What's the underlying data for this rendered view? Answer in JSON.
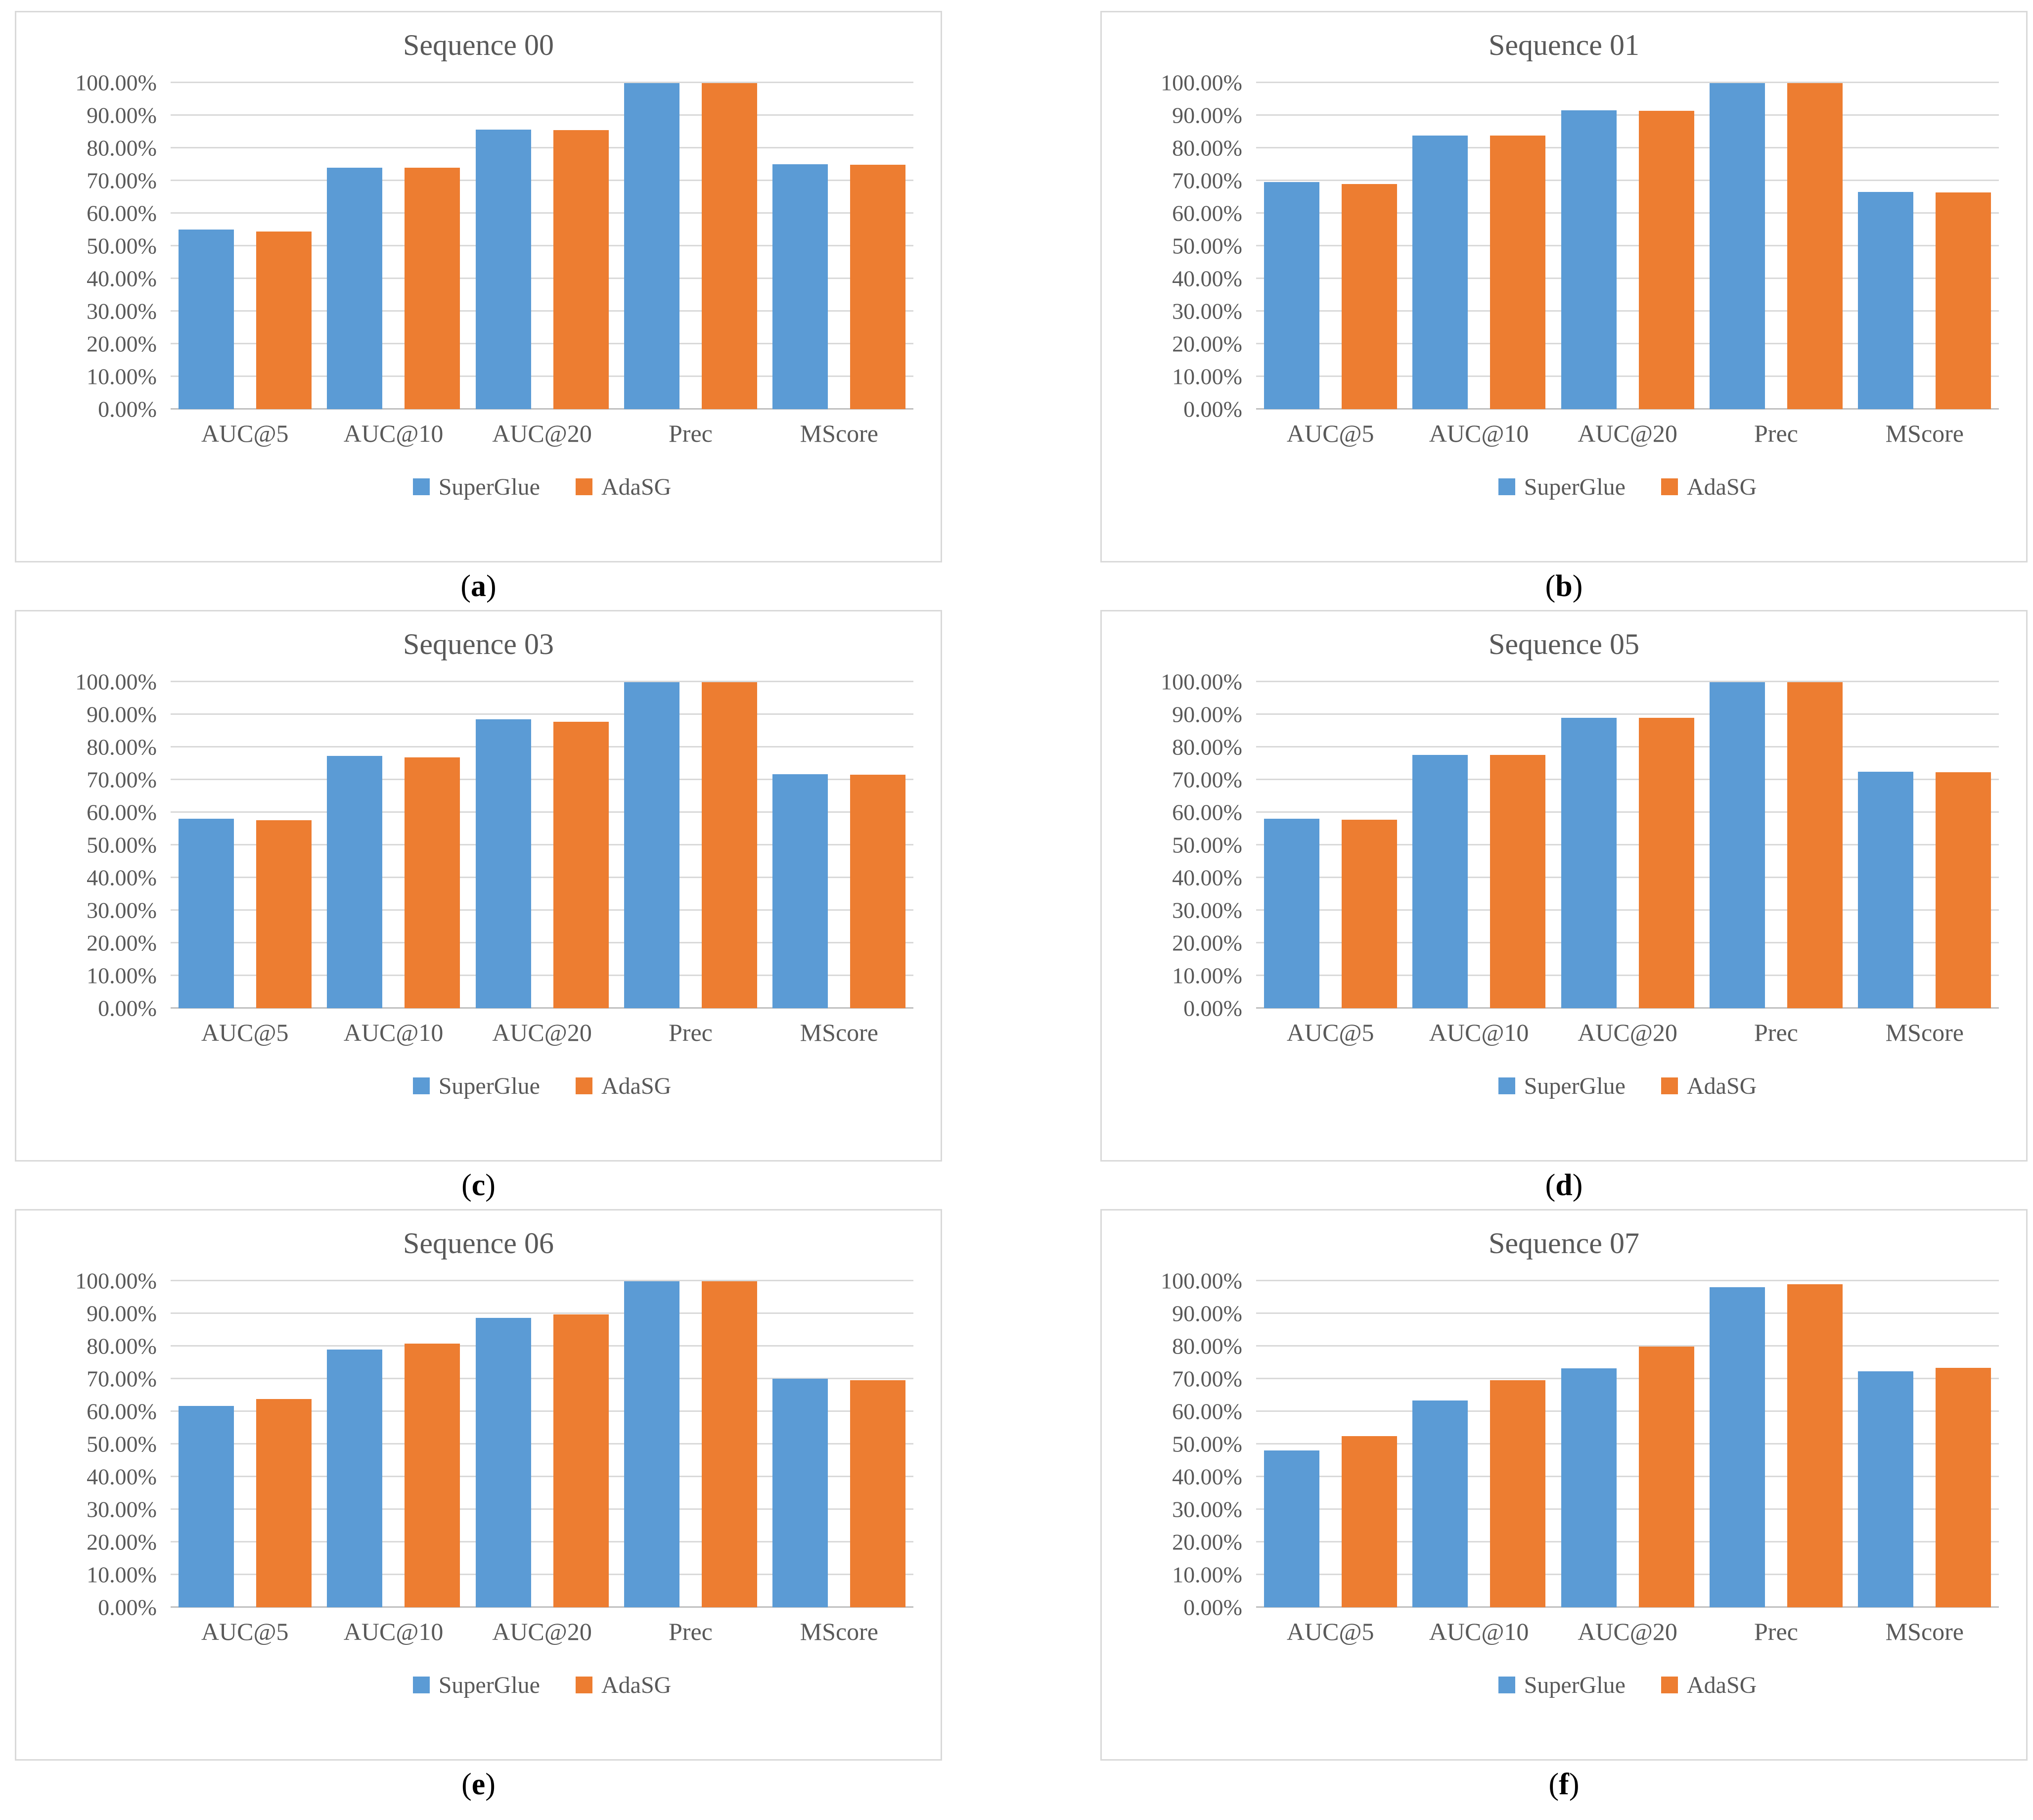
{
  "caption": {
    "open": "(",
    "close": ")"
  },
  "colors": {
    "series_blue": "#5B9BD5",
    "series_orange": "#ED7D31",
    "text_gray": "#595959",
    "gridline": "#D9D9D9",
    "axis_line": "#BFBFBF",
    "panel_border": "#D9D9D9",
    "caption_black": "#000000"
  },
  "legend": {
    "position": "bottom",
    "items": [
      {
        "label": "SuperGlue",
        "color": "#5B9BD5"
      },
      {
        "label": "AdaSG",
        "color": "#ED7D31"
      }
    ]
  },
  "y_axis": {
    "min": 0,
    "max": 100,
    "step": 10,
    "format": "percent",
    "grid": true,
    "tick_labels": [
      "100.00%",
      "90.00%",
      "80.00%",
      "70.00%",
      "60.00%",
      "50.00%",
      "40.00%",
      "30.00%",
      "20.00%",
      "10.00%",
      "0.00%"
    ]
  },
  "chart_data": [
    {
      "type": "bar",
      "title": "Sequence 00",
      "caption_letter": "a",
      "categories": [
        "AUC@5",
        "AUC@10",
        "AUC@20",
        "Prec",
        "MScore"
      ],
      "ylim": [
        0,
        100
      ],
      "grid": true,
      "legend_position": "bottom",
      "series": [
        {
          "name": "SuperGlue",
          "values": [
            55.0,
            74.0,
            85.6,
            99.8,
            75.0
          ]
        },
        {
          "name": "AdaSG",
          "values": [
            54.4,
            74.0,
            85.5,
            99.8,
            74.9
          ]
        }
      ]
    },
    {
      "type": "bar",
      "title": "Sequence 01",
      "caption_letter": "b",
      "categories": [
        "AUC@5",
        "AUC@10",
        "AUC@20",
        "Prec",
        "MScore"
      ],
      "ylim": [
        0,
        100
      ],
      "grid": true,
      "legend_position": "bottom",
      "series": [
        {
          "name": "SuperGlue",
          "values": [
            69.5,
            83.8,
            91.5,
            99.9,
            66.5
          ]
        },
        {
          "name": "AdaSG",
          "values": [
            69.0,
            83.8,
            91.4,
            99.9,
            66.4
          ]
        }
      ]
    },
    {
      "type": "bar",
      "title": "Sequence 03",
      "caption_letter": "c",
      "categories": [
        "AUC@5",
        "AUC@10",
        "AUC@20",
        "Prec",
        "MScore"
      ],
      "ylim": [
        0,
        100
      ],
      "grid": true,
      "legend_position": "bottom",
      "series": [
        {
          "name": "SuperGlue",
          "values": [
            58.0,
            77.2,
            88.5,
            99.9,
            71.6
          ]
        },
        {
          "name": "AdaSG",
          "values": [
            57.6,
            76.8,
            87.7,
            99.9,
            71.5
          ]
        }
      ]
    },
    {
      "type": "bar",
      "title": "Sequence 05",
      "caption_letter": "d",
      "categories": [
        "AUC@5",
        "AUC@10",
        "AUC@20",
        "Prec",
        "MScore"
      ],
      "ylim": [
        0,
        100
      ],
      "grid": true,
      "legend_position": "bottom",
      "series": [
        {
          "name": "SuperGlue",
          "values": [
            58.1,
            77.6,
            89.0,
            99.9,
            72.4
          ]
        },
        {
          "name": "AdaSG",
          "values": [
            57.8,
            77.6,
            89.0,
            99.9,
            72.3
          ]
        }
      ]
    },
    {
      "type": "bar",
      "title": "Sequence 06",
      "caption_letter": "e",
      "categories": [
        "AUC@5",
        "AUC@10",
        "AUC@20",
        "Prec",
        "MScore"
      ],
      "ylim": [
        0,
        100
      ],
      "grid": true,
      "legend_position": "bottom",
      "series": [
        {
          "name": "SuperGlue",
          "values": [
            61.7,
            79.0,
            88.6,
            99.9,
            70.0
          ]
        },
        {
          "name": "AdaSG",
          "values": [
            63.8,
            80.7,
            89.7,
            99.9,
            69.5
          ]
        }
      ]
    },
    {
      "type": "bar",
      "title": "Sequence 07",
      "caption_letter": "f",
      "categories": [
        "AUC@5",
        "AUC@10",
        "AUC@20",
        "Prec",
        "MScore"
      ],
      "ylim": [
        0,
        100
      ],
      "grid": true,
      "legend_position": "bottom",
      "series": [
        {
          "name": "SuperGlue",
          "values": [
            48.1,
            63.4,
            73.2,
            98.0,
            72.3
          ]
        },
        {
          "name": "AdaSG",
          "values": [
            52.5,
            69.5,
            79.9,
            99.0,
            73.3
          ]
        }
      ]
    }
  ]
}
